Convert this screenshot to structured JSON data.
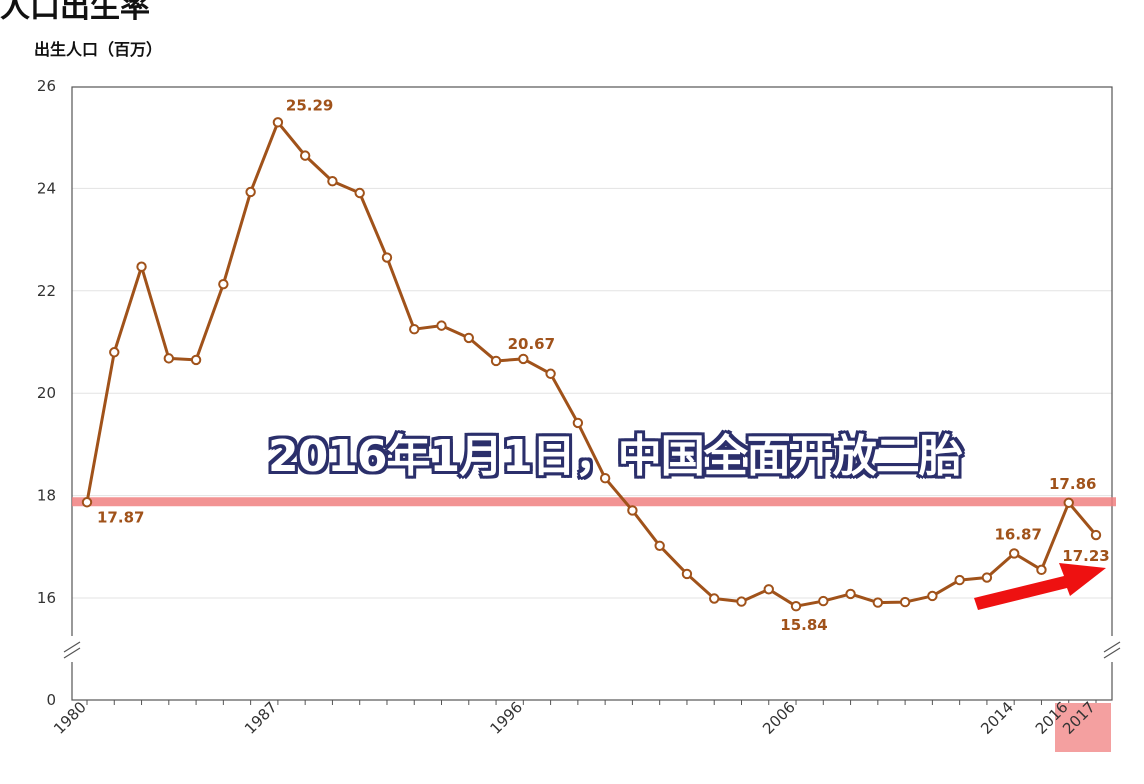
{
  "page": {
    "top_cut_text": "人口出生率",
    "caption": "2016年1月1日，中国全面开放二胎"
  },
  "colors": {
    "line": "#a0521a",
    "highlight_band": "#f08080",
    "highlight_box": "#f4a0a0",
    "arrow": "#ee1111",
    "caption_outline": "#2b2f6b"
  },
  "chart_data": {
    "type": "line",
    "title": "",
    "xlabel": "",
    "ylabel": "出生人口（百万）",
    "ylim": [
      0,
      26
    ],
    "axis_break": true,
    "y_ticks": [
      0,
      16,
      18,
      20,
      22,
      24,
      26
    ],
    "x_tick_labels": [
      "1980",
      "1987",
      "1996",
      "2006",
      "2014",
      "2016",
      "2017"
    ],
    "grid": true,
    "x": [
      1980,
      1981,
      1982,
      1983,
      1984,
      1985,
      1986,
      1987,
      1988,
      1989,
      1990,
      1991,
      1992,
      1993,
      1994,
      1995,
      1996,
      1997,
      1998,
      1999,
      2000,
      2001,
      2002,
      2003,
      2004,
      2005,
      2006,
      2007,
      2008,
      2009,
      2010,
      2011,
      2012,
      2013,
      2014,
      2015,
      2016,
      2017
    ],
    "series": [
      {
        "values": [
          17.87,
          20.8,
          22.47,
          20.68,
          20.65,
          22.13,
          23.93,
          25.29,
          24.64,
          24.14,
          23.91,
          22.65,
          21.25,
          21.32,
          21.08,
          20.63,
          20.67,
          20.38,
          19.42,
          18.34,
          17.71,
          17.02,
          16.47,
          15.99,
          15.93,
          16.17,
          15.84,
          15.94,
          16.08,
          15.91,
          15.92,
          16.04,
          16.35,
          16.4,
          16.87,
          16.55,
          17.86,
          17.23
        ]
      }
    ],
    "data_labels": [
      {
        "x": 1980,
        "text": "17.87"
      },
      {
        "x": 1987,
        "text": "25.29"
      },
      {
        "x": 1996,
        "text": "20.67"
      },
      {
        "x": 2006,
        "text": "15.84"
      },
      {
        "x": 2014,
        "text": "16.87"
      },
      {
        "x": 2016,
        "text": "17.86"
      },
      {
        "x": 2017,
        "text": "17.23"
      }
    ],
    "reference_line": {
      "y": 17.87
    }
  }
}
